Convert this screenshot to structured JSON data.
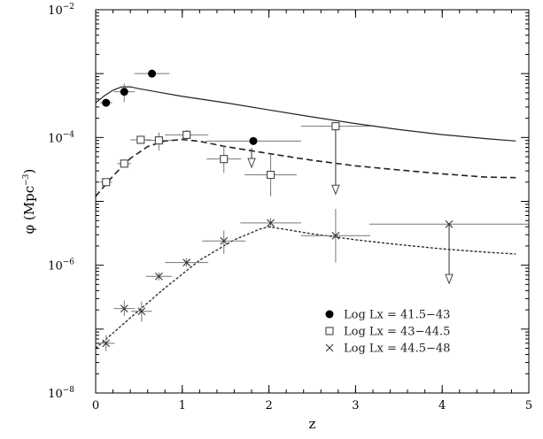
{
  "chart_data": {
    "type": "scatter",
    "xlabel": "z",
    "ylabel_prefix": "φ (Mpc",
    "ylabel_exp": "−3",
    "ylabel_suffix": ")",
    "xlim": [
      0,
      5
    ],
    "ylim": [
      1e-08,
      0.01
    ],
    "yscale": "log",
    "grid": false,
    "legend_position": "bottom-right",
    "x_ticks": [
      {
        "value": 0,
        "label": "0"
      },
      {
        "value": 1,
        "label": "1"
      },
      {
        "value": 2,
        "label": "2"
      },
      {
        "value": 3,
        "label": "3"
      },
      {
        "value": 4,
        "label": "4"
      },
      {
        "value": 5,
        "label": "5"
      }
    ],
    "y_ticks": [
      {
        "value": 1e-08,
        "base": "10",
        "exp": "−8"
      },
      {
        "value": 1e-06,
        "base": "10",
        "exp": "−6"
      },
      {
        "value": 0.0001,
        "base": "10",
        "exp": "−4"
      },
      {
        "value": 0.01,
        "base": "10",
        "exp": "−2"
      }
    ],
    "series": [
      {
        "name": "Log Lx = 41.5−43",
        "marker": "filled-circle",
        "color": "#000000",
        "line_style": "solid",
        "points": [
          {
            "x": 0.12,
            "y": 0.00035,
            "xerr": 0.07,
            "ylo": 0.00031,
            "yhi": 0.00038
          },
          {
            "x": 0.33,
            "y": 0.00052,
            "xerr": 0.12,
            "ylo": 0.00036,
            "yhi": 0.0007
          },
          {
            "x": 0.65,
            "y": 0.001,
            "xerr": 0.2,
            "ylo": 0.001,
            "yhi": 0.001
          },
          {
            "x": 1.82,
            "y": 8.8e-05,
            "xerr": 0.55,
            "ylo": 8.8e-05,
            "yhi": 8.8e-05
          }
        ],
        "model": [
          [
            0,
            0.00035
          ],
          [
            0.1,
            0.00045
          ],
          [
            0.2,
            0.00055
          ],
          [
            0.3,
            0.00062
          ],
          [
            0.4,
            0.00062
          ],
          [
            0.5,
            0.00058
          ],
          [
            0.7,
            0.00052
          ],
          [
            1.0,
            0.00044
          ],
          [
            1.5,
            0.00035
          ],
          [
            2.0,
            0.00027
          ],
          [
            2.5,
            0.00021
          ],
          [
            3.0,
            0.000165
          ],
          [
            3.5,
            0.000133
          ],
          [
            4.0,
            0.000111
          ],
          [
            4.5,
            9.6e-05
          ],
          [
            4.85,
            8.8e-05
          ]
        ]
      },
      {
        "name": "Log Lx = 43−44.5",
        "marker": "open-square",
        "color": "#444444",
        "line_style": "dashed",
        "points": [
          {
            "x": 0.12,
            "y": 2e-05,
            "xerr": 0.07,
            "ylo": 1.8e-05,
            "yhi": 2.2e-05
          },
          {
            "x": 0.33,
            "y": 3.9e-05,
            "xerr": 0.08,
            "ylo": 3.4e-05,
            "yhi": 4.4e-05
          },
          {
            "x": 0.52,
            "y": 9.2e-05,
            "xerr": 0.12,
            "ylo": 7.9e-05,
            "yhi": 0.000106
          },
          {
            "x": 0.73,
            "y": 9e-05,
            "xerr": 0.15,
            "ylo": 6.2e-05,
            "yhi": 0.00012
          },
          {
            "x": 1.05,
            "y": 0.00011,
            "xerr": 0.25,
            "ylo": 9.2e-05,
            "yhi": 0.00013
          },
          {
            "x": 1.48,
            "y": 4.6e-05,
            "xerr": 0.2,
            "ylo": 2.8e-05,
            "yhi": 7.5e-05
          },
          {
            "x": 2.02,
            "y": 2.6e-05,
            "xerr": 0.3,
            "ylo": 1.2e-05,
            "yhi": 5.5e-05
          },
          {
            "x": 2.77,
            "y": 0.00015,
            "xerr": 0.4,
            "ylo": 0.00015,
            "yhi": 0.00015
          }
        ],
        "model": [
          [
            0,
            1.2e-05
          ],
          [
            0.2,
            2.5e-05
          ],
          [
            0.4,
            4.7e-05
          ],
          [
            0.6,
            7.2e-05
          ],
          [
            0.8,
            8.8e-05
          ],
          [
            1.0,
            9.3e-05
          ],
          [
            1.2,
            8.7e-05
          ],
          [
            1.5,
            7.2e-05
          ],
          [
            2.0,
            5.6e-05
          ],
          [
            2.5,
            4.4e-05
          ],
          [
            3.0,
            3.6e-05
          ],
          [
            3.5,
            3.1e-05
          ],
          [
            4.0,
            2.7e-05
          ],
          [
            4.5,
            2.4e-05
          ],
          [
            4.85,
            2.35e-05
          ]
        ]
      },
      {
        "name": "Log Lx = 44.5−48",
        "marker": "cross",
        "color": "#333333",
        "line_style": "dotted",
        "points": [
          {
            "x": 0.12,
            "y": 6e-08,
            "xerr": 0.1,
            "ylo": 4.5e-08,
            "yhi": 8e-08
          },
          {
            "x": 0.33,
            "y": 2.1e-07,
            "xerr": 0.12,
            "ylo": 1.6e-07,
            "yhi": 2.8e-07
          },
          {
            "x": 0.53,
            "y": 1.9e-07,
            "xerr": 0.12,
            "ylo": 1.3e-07,
            "yhi": 2.7e-07
          },
          {
            "x": 0.73,
            "y": 6.7e-07,
            "xerr": 0.15,
            "ylo": 5.8e-07,
            "yhi": 7.7e-07
          },
          {
            "x": 1.05,
            "y": 1.1e-06,
            "xerr": 0.25,
            "ylo": 9.5e-07,
            "yhi": 1.3e-06
          },
          {
            "x": 1.48,
            "y": 2.4e-06,
            "xerr": 0.25,
            "ylo": 1.5e-06,
            "yhi": 3.5e-06
          },
          {
            "x": 2.02,
            "y": 4.6e-06,
            "xerr": 0.35,
            "ylo": 3.8e-06,
            "yhi": 5.5e-06
          },
          {
            "x": 2.77,
            "y": 2.9e-06,
            "xerr": 0.4,
            "ylo": 1.1e-06,
            "yhi": 7.6e-06
          },
          {
            "x": 4.08,
            "y": 4.4e-06,
            "xerr": 0.92,
            "ylo": 4.4e-06,
            "yhi": 4.4e-06
          }
        ],
        "model": [
          [
            0,
            5e-08
          ],
          [
            0.4,
            1.5e-07
          ],
          [
            0.8,
            4.4e-07
          ],
          [
            1.2,
            1.2e-06
          ],
          [
            1.6,
            2.5e-06
          ],
          [
            1.9,
            3.7e-06
          ],
          [
            2.0,
            4e-06
          ],
          [
            2.5,
            3.1e-06
          ],
          [
            3.0,
            2.5e-06
          ],
          [
            3.5,
            2.1e-06
          ],
          [
            4.0,
            1.8e-06
          ],
          [
            4.5,
            1.6e-06
          ],
          [
            4.85,
            1.5e-06
          ]
        ]
      }
    ],
    "upper_limits": [
      {
        "series": "Log Lx = 43−44.5",
        "x": 1.8,
        "from": 6.8e-05,
        "to": 3.4e-05
      },
      {
        "series": "Log Lx = 43−44.5",
        "x": 2.77,
        "from": 0.00015,
        "to": 1.3e-05
      },
      {
        "series": "Log Lx = 44.5−48",
        "x": 4.08,
        "from": 4.4e-06,
        "to": 5.2e-07
      }
    ]
  }
}
